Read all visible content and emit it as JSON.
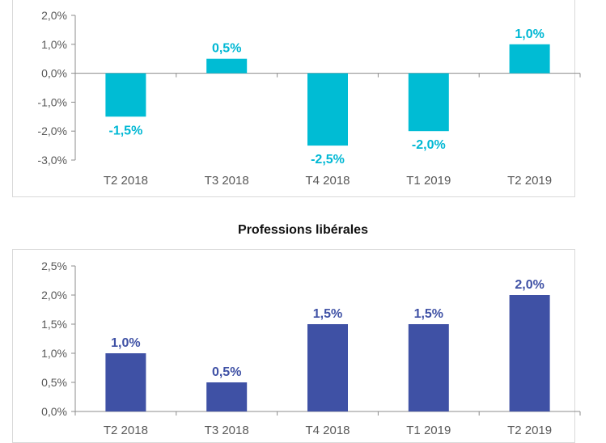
{
  "chart_data": [
    {
      "type": "bar",
      "title": "",
      "categories": [
        "T2 2018",
        "T3 2018",
        "T4 2018",
        "T1 2019",
        "T2 2019"
      ],
      "values": [
        -1.5,
        0.5,
        -2.5,
        -2.0,
        1.0
      ],
      "data_labels": [
        "-1,5%",
        "0,5%",
        "-2,5%",
        "-2,0%",
        "1,0%"
      ],
      "y_ticks": [
        "-3,0%",
        "-2,0%",
        "-1,0%",
        "0,0%",
        "1,0%",
        "2,0%"
      ],
      "y_tick_values": [
        -3,
        -2,
        -1,
        0,
        1,
        2
      ],
      "ylim": [
        -3,
        2
      ],
      "xlabel": "",
      "ylabel": "",
      "grid": false,
      "legend": "none",
      "color": "#00bcd4"
    },
    {
      "type": "bar",
      "title": "Professions libérales",
      "categories": [
        "T2 2018",
        "T3 2018",
        "T4 2018",
        "T1 2019",
        "T2 2019"
      ],
      "values": [
        1.0,
        0.5,
        1.5,
        1.5,
        2.0
      ],
      "data_labels": [
        "1,0%",
        "0,5%",
        "1,5%",
        "1,5%",
        "2,0%"
      ],
      "y_ticks": [
        "0,0%",
        "0,5%",
        "1,0%",
        "1,5%",
        "2,0%",
        "2,5%"
      ],
      "y_tick_values": [
        0,
        0.5,
        1,
        1.5,
        2,
        2.5
      ],
      "ylim": [
        0,
        2.5
      ],
      "xlabel": "",
      "ylabel": "",
      "grid": false,
      "legend": "none",
      "color": "#3f51a5"
    }
  ]
}
